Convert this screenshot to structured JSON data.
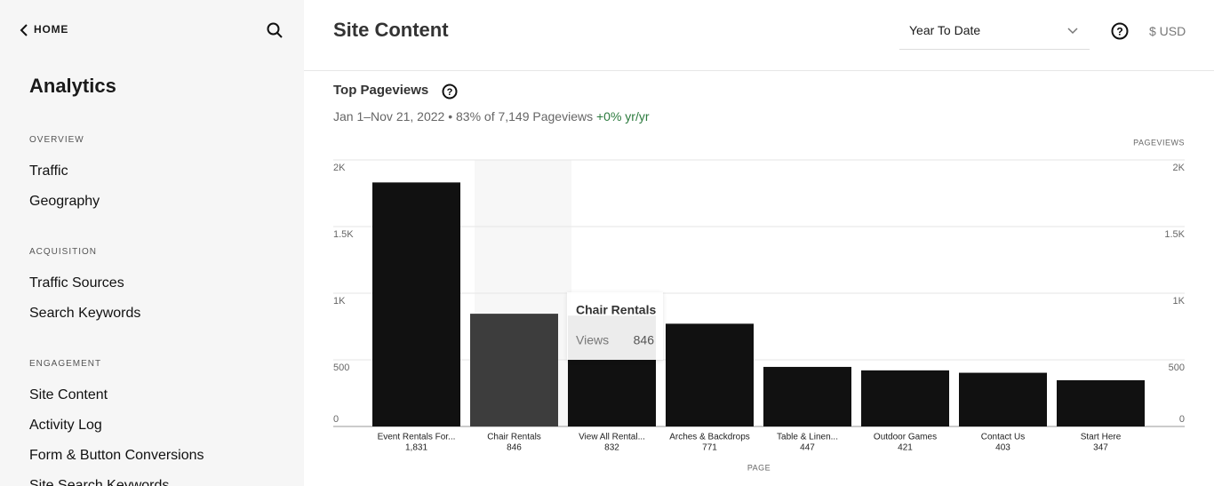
{
  "sidebar": {
    "back": "HOME",
    "title": "Analytics",
    "sections": [
      {
        "heading": "OVERVIEW",
        "items": [
          "Traffic",
          "Geography"
        ]
      },
      {
        "heading": "ACQUISITION",
        "items": [
          "Traffic Sources",
          "Search Keywords"
        ]
      },
      {
        "heading": "ENGAGEMENT",
        "items": [
          "Site Content",
          "Activity Log",
          "Form & Button Conversions",
          "Site Search Keywords"
        ]
      }
    ]
  },
  "header": {
    "title": "Site Content",
    "range": "Year To Date",
    "currency": "$ USD"
  },
  "card": {
    "title": "Top Pageviews",
    "subtitle": "Jan 1–Nov 21, 2022 • 83% of 7,149 Pageviews",
    "delta": "+0% yr/yr"
  },
  "chart_data": {
    "type": "bar",
    "y_label": "PAGEVIEWS",
    "x_label": "PAGE",
    "categories": [
      "Event Rentals For...",
      "Chair Rentals",
      "View All Rental...",
      "Arches & Backdrops",
      "Table & Linen...",
      "Outdoor Games",
      "Contact Us",
      "Start Here"
    ],
    "values": [
      1831,
      846,
      832,
      771,
      447,
      421,
      403,
      347
    ],
    "value_labels": [
      "1,831",
      "846",
      "832",
      "771",
      "447",
      "421",
      "403",
      "347"
    ],
    "color": "#111111",
    "highlight_color": "#3d3d3d",
    "highlight_index": 1,
    "tooltip_label": "Views",
    "ylim": [
      0,
      2000
    ],
    "yticks": [
      0,
      500,
      {
        "value": 1000,
        "label": "1K"
      },
      {
        "value": 1500,
        "label": "1.5K"
      },
      {
        "value": 2000,
        "label": "2K"
      }
    ],
    "grid": true
  }
}
